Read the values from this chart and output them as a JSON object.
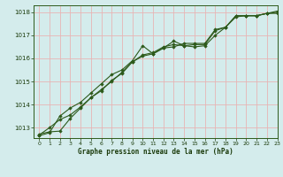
{
  "title": "Graphe pression niveau de la mer (hPa)",
  "background_color": "#d4ecec",
  "grid_color": "#e8b4b4",
  "line_color": "#2d5a1b",
  "marker_color": "#2d5a1b",
  "xlim": [
    -0.5,
    23
  ],
  "ylim": [
    1012.55,
    1018.3
  ],
  "yticks": [
    1013,
    1014,
    1015,
    1016,
    1017,
    1018
  ],
  "xticks": [
    0,
    1,
    2,
    3,
    4,
    5,
    6,
    7,
    8,
    9,
    10,
    11,
    12,
    13,
    14,
    15,
    16,
    17,
    18,
    19,
    20,
    21,
    22,
    23
  ],
  "series1": [
    1012.72,
    1012.82,
    1012.85,
    1013.4,
    1013.85,
    1014.3,
    1014.6,
    1015.05,
    1015.35,
    1015.85,
    1016.1,
    1016.2,
    1016.45,
    1016.5,
    1016.65,
    1016.65,
    1016.65,
    1017.25,
    1017.35,
    1017.85,
    1017.85,
    1017.85,
    1017.95,
    1017.95
  ],
  "series2": [
    1012.65,
    1012.78,
    1013.5,
    1013.85,
    1014.1,
    1014.5,
    1014.9,
    1015.3,
    1015.5,
    1015.9,
    1016.55,
    1016.2,
    1016.45,
    1016.75,
    1016.55,
    1016.5,
    1016.55,
    1017.0,
    1017.35,
    1017.8,
    1017.85,
    1017.85,
    1017.95,
    1018.05
  ],
  "series3": [
    1012.68,
    1013.0,
    1013.35,
    1013.55,
    1013.9,
    1014.3,
    1014.65,
    1015.0,
    1015.4,
    1015.85,
    1016.15,
    1016.25,
    1016.5,
    1016.6,
    1016.55,
    1016.6,
    1016.6,
    1017.2,
    1017.35,
    1017.85,
    1017.85,
    1017.85,
    1017.95,
    1018.0
  ],
  "xlabel_fontsize": 5.5,
  "ylabel_fontsize": 5.5,
  "tick_fontsize": 4.5,
  "title_fontsize": 5.5
}
